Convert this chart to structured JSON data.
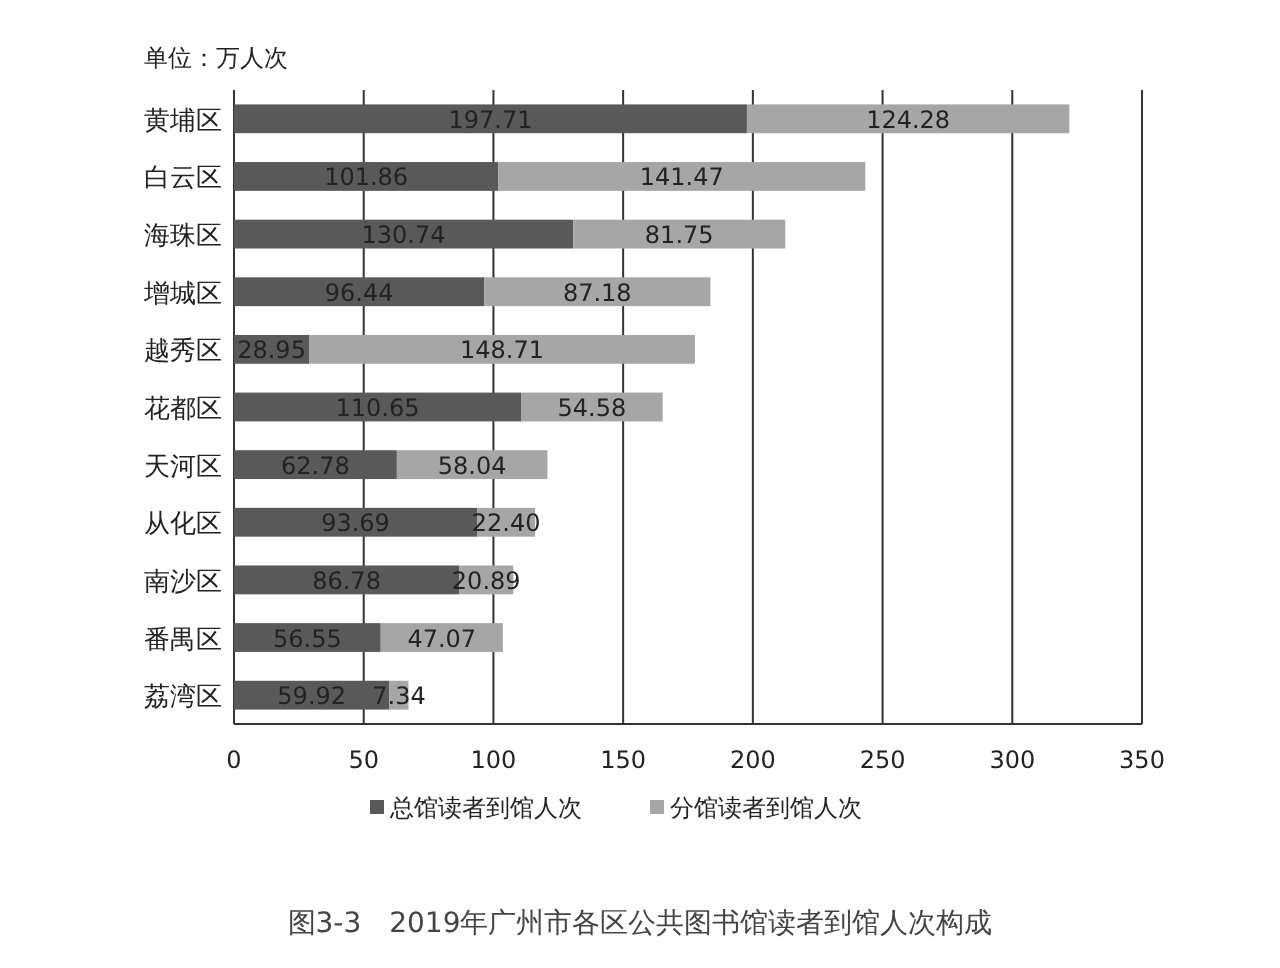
{
  "chart_data": {
    "type": "bar",
    "orientation": "horizontal",
    "stacked": true,
    "categories": [
      "黄埔区",
      "白云区",
      "海珠区",
      "增城区",
      "越秀区",
      "花都区",
      "天河区",
      "从化区",
      "南沙区",
      "番禺区",
      "荔湾区"
    ],
    "series": [
      {
        "name": "总馆读者到馆人次",
        "color": "#595959",
        "values": [
          197.71,
          101.86,
          130.74,
          96.44,
          28.95,
          110.65,
          62.78,
          93.69,
          86.78,
          56.55,
          59.92
        ],
        "value_labels": [
          "197.71",
          "101.86",
          "130.74",
          "96.44",
          "28.95",
          "110.65",
          "62.78",
          "93.69",
          "86.78",
          "56.55",
          "59.92"
        ]
      },
      {
        "name": "分馆读者到馆人次",
        "color": "#a6a6a6",
        "values": [
          124.28,
          141.47,
          81.75,
          87.18,
          148.71,
          54.58,
          58.04,
          22.4,
          20.89,
          47.07,
          7.34
        ],
        "value_labels": [
          "124.28",
          "141.47",
          "81.75",
          "87.18",
          "148.71",
          "54.58",
          "58.04",
          "22.40",
          "20.89",
          "47.07",
          "7.34"
        ]
      }
    ],
    "xlim": [
      0,
      350
    ],
    "xticks": [
      0,
      50,
      100,
      150,
      200,
      250,
      300,
      350
    ],
    "grid": "x",
    "legend": "bottom",
    "annotations": [
      "单位：万人次",
      "图3-3　2019年广州市各区公共图书馆读者到馆人次构成"
    ]
  }
}
